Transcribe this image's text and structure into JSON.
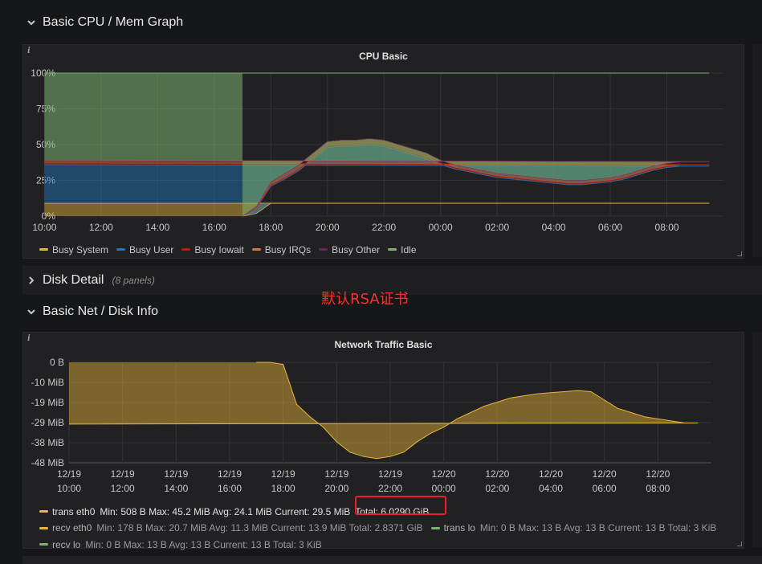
{
  "rows": {
    "cpu_mem": {
      "title": "Basic CPU / Mem Graph"
    },
    "disk": {
      "title": "Disk Detail",
      "subtitle": "(8 panels)"
    },
    "net": {
      "title": "Basic Net / Disk Info"
    }
  },
  "annotation": "默认RSA证书",
  "colors": {
    "busy_system": "#EAB839",
    "busy_user": "#1F78C1",
    "busy_iowait": "#BF1B00",
    "busy_irqs": "#E0752D",
    "busy_other": "#6D1F62",
    "idle": "#7EB26D",
    "trans_eth0": "#EAB839",
    "recv_eth0": "#EAB839",
    "trans_lo": "#7EB26D",
    "recv_lo": "#7EB26D"
  },
  "chart_data": [
    {
      "type": "area",
      "title": "CPU Basic",
      "y_ticks": [
        "100%",
        "75%",
        "50%",
        "25%",
        "0%"
      ],
      "x_ticks": [
        "12:00",
        "14:00",
        "16:00",
        "18:00",
        "20:00",
        "22:00",
        "00:00",
        "02:00",
        "04:00",
        "06:00",
        "08:00",
        "10:00"
      ],
      "ylim": [
        0,
        100
      ],
      "stacked": true,
      "x": [
        "17:00",
        "17:30",
        "18:00",
        "18:30",
        "19:00",
        "19:30",
        "20:00",
        "20:30",
        "21:00",
        "21:30",
        "22:00",
        "22:30",
        "23:00",
        "23:30",
        "00:00",
        "00:30",
        "01:00",
        "01:30",
        "02:00",
        "02:30",
        "03:00",
        "03:30",
        "04:00",
        "04:30",
        "05:00",
        "05:30",
        "06:00",
        "06:30",
        "07:00",
        "07:30",
        "08:00",
        "08:30",
        "09:00",
        "09:30",
        "10:00"
      ],
      "series": [
        {
          "name": "Busy System",
          "values": [
            0,
            2,
            9,
            9,
            9,
            9,
            9,
            9,
            9,
            9,
            9,
            9,
            9,
            9,
            9,
            9,
            9,
            9,
            9,
            9,
            9,
            9,
            9,
            9,
            9,
            9,
            9,
            9,
            9,
            9,
            9,
            9,
            9,
            9,
            9
          ]
        },
        {
          "name": "Busy User",
          "values": [
            0,
            4,
            12,
            17,
            23,
            31,
            39,
            40,
            40,
            41,
            40,
            37,
            34,
            31,
            27,
            24,
            22,
            20,
            18,
            17,
            16,
            15,
            14,
            13,
            13,
            14,
            15,
            17,
            20,
            23,
            25,
            26,
            26,
            26,
            27
          ]
        },
        {
          "name": "Busy Iowait",
          "values": [
            0,
            0,
            1,
            1,
            1,
            1,
            1,
            1,
            1,
            1,
            1,
            1,
            1,
            1,
            1,
            1,
            1,
            1,
            1,
            1,
            1,
            1,
            1,
            1,
            1,
            1,
            1,
            1,
            1,
            1,
            1,
            1,
            1,
            1,
            1
          ]
        },
        {
          "name": "Busy IRQs",
          "values": [
            0,
            1,
            2,
            3,
            3,
            3,
            3,
            3,
            3,
            3,
            3,
            3,
            3,
            3,
            2,
            2,
            2,
            2,
            2,
            2,
            2,
            2,
            2,
            2,
            2,
            2,
            2,
            2,
            2,
            2,
            2,
            2,
            2,
            2,
            2
          ]
        },
        {
          "name": "Busy Other",
          "values": [
            0,
            0,
            0,
            0,
            0,
            0,
            0,
            0,
            0,
            0,
            0,
            0,
            0,
            0,
            0,
            0,
            0,
            0,
            0,
            0,
            0,
            0,
            0,
            0,
            0,
            0,
            0,
            0,
            0,
            0,
            0,
            0,
            0,
            0,
            0
          ]
        },
        {
          "name": "Idle",
          "values": [
            100,
            93,
            76,
            70,
            64,
            56,
            48,
            47,
            47,
            46,
            47,
            50,
            53,
            56,
            61,
            64,
            66,
            68,
            70,
            71,
            72,
            73,
            74,
            75,
            75,
            74,
            73,
            71,
            68,
            65,
            63,
            62,
            62,
            62,
            61
          ]
        }
      ],
      "legend": [
        "Busy System",
        "Busy User",
        "Busy Iowait",
        "Busy IRQs",
        "Busy Other",
        "Idle"
      ]
    },
    {
      "type": "area",
      "title": "Network Traffic Basic",
      "y_ticks": [
        "0 B",
        "-10 MiB",
        "-19 MiB",
        "-29 MiB",
        "-38 MiB",
        "-48 MiB"
      ],
      "ylim": [
        -48,
        0
      ],
      "x_ticks": [
        {
          "date": "12/19",
          "time": "10:00"
        },
        {
          "date": "12/19",
          "time": "12:00"
        },
        {
          "date": "12/19",
          "time": "14:00"
        },
        {
          "date": "12/19",
          "time": "16:00"
        },
        {
          "date": "12/19",
          "time": "18:00"
        },
        {
          "date": "12/19",
          "time": "20:00"
        },
        {
          "date": "12/19",
          "time": "22:00"
        },
        {
          "date": "12/20",
          "time": "00:00"
        },
        {
          "date": "12/20",
          "time": "02:00"
        },
        {
          "date": "12/20",
          "time": "04:00"
        },
        {
          "date": "12/20",
          "time": "06:00"
        },
        {
          "date": "12/20",
          "time": "08:00"
        }
      ],
      "x": [
        "17:00",
        "17:30",
        "18:00",
        "18:30",
        "19:00",
        "19:30",
        "20:00",
        "20:30",
        "21:00",
        "21:30",
        "22:00",
        "22:30",
        "23:00",
        "23:30",
        "00:00",
        "00:30",
        "01:00",
        "01:30",
        "02:00",
        "02:30",
        "03:00",
        "03:30",
        "04:00",
        "04:30",
        "05:00",
        "05:30",
        "06:00",
        "06:30",
        "07:00",
        "07:30",
        "08:00",
        "08:30",
        "09:00",
        "09:30",
        "10:00"
      ],
      "series": [
        {
          "name": "trans eth0",
          "values": [
            0,
            0,
            -1,
            -20,
            -26,
            -31,
            -38,
            -43,
            -45,
            -46,
            -45,
            -43,
            -38,
            -34,
            -31,
            -27,
            -24,
            -21,
            -19,
            -17,
            -16,
            -15,
            -14.5,
            -14,
            -13.5,
            -14,
            -18,
            -22,
            -24,
            -26,
            -27,
            -28,
            -29,
            -29,
            -29.5
          ]
        }
      ],
      "legend": [
        {
          "name": "trans eth0",
          "stats": "Min: 508 B  Max: 45.2 MiB  Avg: 24.1 MiB  Current: 29.5 MiB",
          "total": "Total: 6.0290 GiB"
        },
        {
          "name": "recv eth0",
          "stats": "Min: 178 B  Max: 20.7 MiB  Avg: 11.3 MiB  Current: 13.9 MiB  Total: 2.8371 GiB"
        },
        {
          "name": "trans lo",
          "stats": "Min: 0 B  Max: 13 B  Avg: 13 B  Current: 13 B  Total: 3 KiB"
        },
        {
          "name": "recv lo",
          "stats": "Min: 0 B  Max: 13 B  Avg: 13 B  Current: 13 B  Total: 3 KiB"
        }
      ]
    }
  ]
}
